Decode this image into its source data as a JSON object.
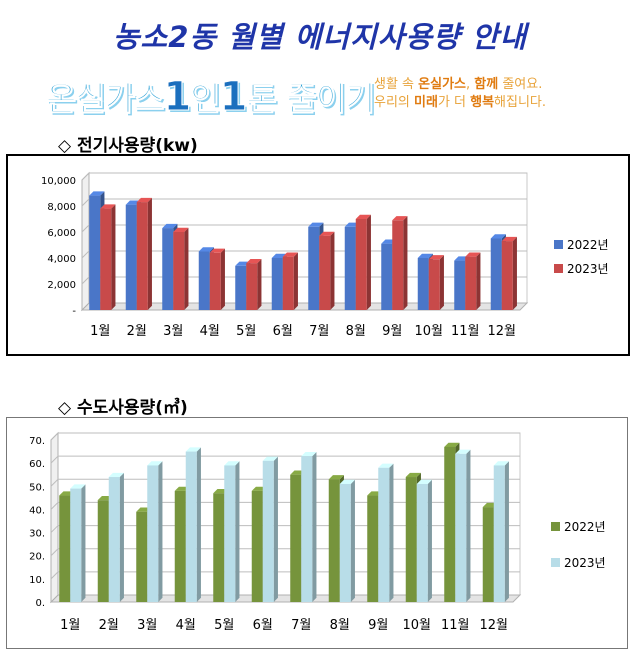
{
  "header": {
    "title": "농소2동 월별 에너지사용량 안내"
  },
  "banner": {
    "slogan_part1": "온실가스",
    "slogan_num1": "1",
    "slogan_part2": "인",
    "slogan_num2": "1",
    "slogan_part3": "톤 줄이기",
    "line1_a": "생활 속 ",
    "line1_em1": "온실가스",
    "line1_b": ", ",
    "line1_em2": "함께",
    "line1_c": " 줄여요.",
    "line2_a": "우리의 ",
    "line2_em1": "미래",
    "line2_b": "가 더 ",
    "line2_em2": "행복",
    "line2_c": "해집니다."
  },
  "sections": {
    "electricity_title": "◇ 전기사용량(kw)",
    "water_title": "◇ 수도사용량(㎥)"
  },
  "chart_data": [
    {
      "type": "bar",
      "categories": [
        "1월",
        "2월",
        "3월",
        "4월",
        "5월",
        "6월",
        "7월",
        "8월",
        "9월",
        "10월",
        "11월",
        "12월"
      ],
      "series": [
        {
          "name": "2022년",
          "values": [
            8800,
            8100,
            6300,
            4500,
            3400,
            4000,
            6400,
            6400,
            5100,
            4000,
            3800,
            5500
          ],
          "color": "#4a76c8"
        },
        {
          "name": "2023년",
          "values": [
            7800,
            8300,
            6000,
            4400,
            3600,
            4100,
            5700,
            7000,
            6900,
            3900,
            4100,
            5300
          ],
          "color": "#c84a4a"
        }
      ],
      "yticks": [
        "-",
        "2,000",
        "4,000",
        "6,000",
        "8,000",
        "10,000"
      ],
      "ylim": [
        0,
        10000
      ],
      "legend_position": "right",
      "grid": true
    },
    {
      "type": "bar",
      "categories": [
        "1월",
        "2월",
        "3월",
        "4월",
        "5월",
        "6월",
        "7월",
        "8월",
        "9월",
        "10월",
        "11월",
        "12월"
      ],
      "series": [
        {
          "name": "2022년",
          "values": [
            46,
            44,
            39,
            48,
            47,
            48,
            55,
            53,
            46,
            54,
            67,
            41
          ],
          "color": "#76943c"
        },
        {
          "name": "2023년",
          "values": [
            49,
            54,
            59,
            65,
            59,
            61,
            63,
            51,
            58,
            51,
            64,
            59
          ],
          "color": "#b8dde8"
        }
      ],
      "yticks": [
        "0.",
        "10.",
        "20.",
        "30.",
        "40.",
        "50.",
        "60.",
        "70."
      ],
      "ylim": [
        0,
        70
      ],
      "legend_position": "right",
      "grid": true
    }
  ]
}
